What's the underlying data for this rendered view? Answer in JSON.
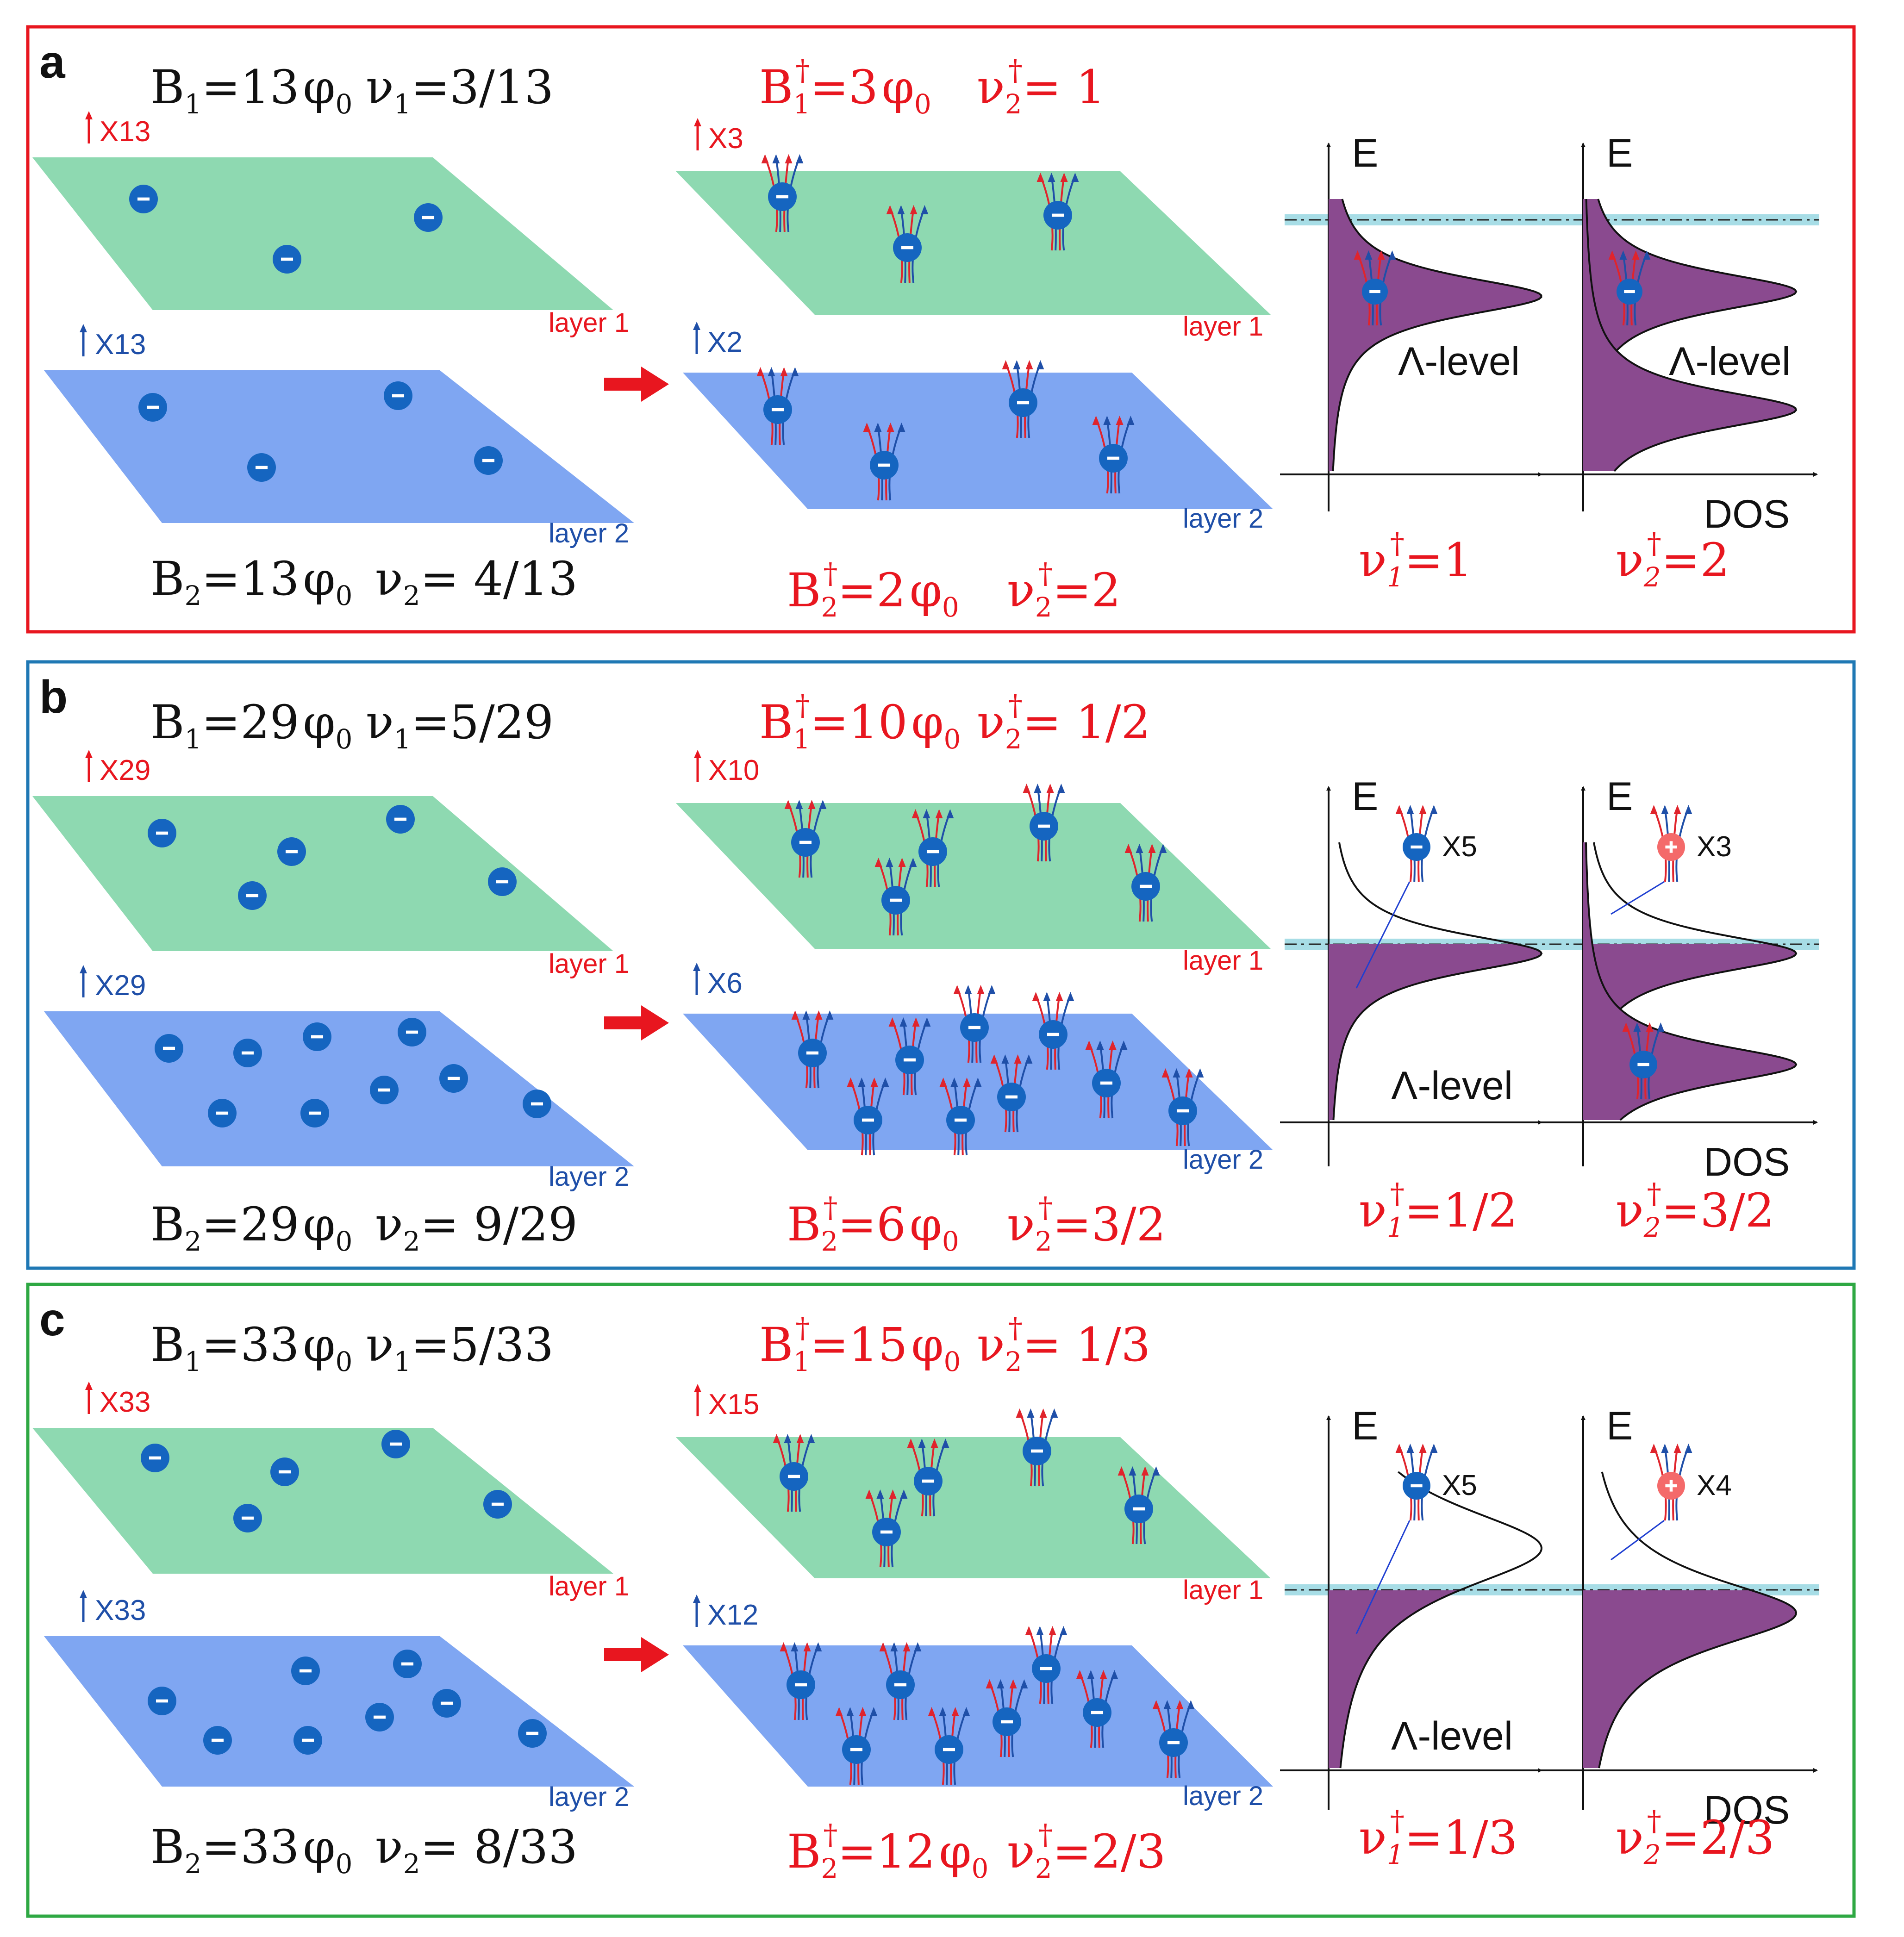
{
  "colors": {
    "frame_a": "#e8161f",
    "frame_b": "#1f78b4",
    "frame_c": "#2ea843",
    "layer1_fill": "#8ed9b1",
    "layer2_fill": "#7fa6f2",
    "electron": "#1565c0",
    "hole": "#f46a6a",
    "red_text": "#e8161f",
    "blue_text": "#1f4fa8",
    "black_text": "#111111",
    "dos_fill": "#8a4a8f",
    "fermi_band": "#a7dde6"
  },
  "common": {
    "layer1_label": "layer 1",
    "layer2_label": "layer 2",
    "energy_axis": "E",
    "dos_axis": "DOS",
    "lambda_level": "Λ-level",
    "electron_symbol": "−",
    "hole_symbol": "+"
  },
  "panels": [
    {
      "letter": "a",
      "B1": "=13",
      "nu1": "=3/13",
      "B2": "=13",
      "nu2": "= 4/13",
      "flux_mult_l1": "X13",
      "flux_mult_l2": "X13",
      "cf_B1": "=3",
      "cf_nu1": "= 1",
      "cf_B2": "=2",
      "cf_nu2": "=2",
      "cf_mult_l1": "X3",
      "cf_mult_l2": "X2",
      "left_nu": "=1",
      "right_nu": "=2",
      "left_marker_label": "",
      "right_marker_label": ""
    },
    {
      "letter": "b",
      "B1": "=29",
      "nu1": "=5/29",
      "B2": "=29",
      "nu2": "= 9/29",
      "flux_mult_l1": "X29",
      "flux_mult_l2": "X29",
      "cf_B1": "=10",
      "cf_nu1": "= 1/2",
      "cf_B2": "=6",
      "cf_nu2": "=3/2",
      "cf_mult_l1": "X10",
      "cf_mult_l2": "X6",
      "left_nu": "=1/2",
      "right_nu": "=3/2",
      "left_marker_label": "X5",
      "right_marker_label": "X3"
    },
    {
      "letter": "c",
      "B1": "=33",
      "nu1": "=5/33",
      "B2": "=33",
      "nu2": "= 8/33",
      "flux_mult_l1": "X33",
      "flux_mult_l2": "X33",
      "cf_B1": "=15",
      "cf_nu1": "= 1/3",
      "cf_B2": "=12",
      "cf_nu2": "=2/3",
      "cf_mult_l1": "X15",
      "cf_mult_l2": "X12",
      "left_nu": "=1/3",
      "right_nu": "=2/3",
      "left_marker_label": "X5",
      "right_marker_label": "X4"
    }
  ]
}
